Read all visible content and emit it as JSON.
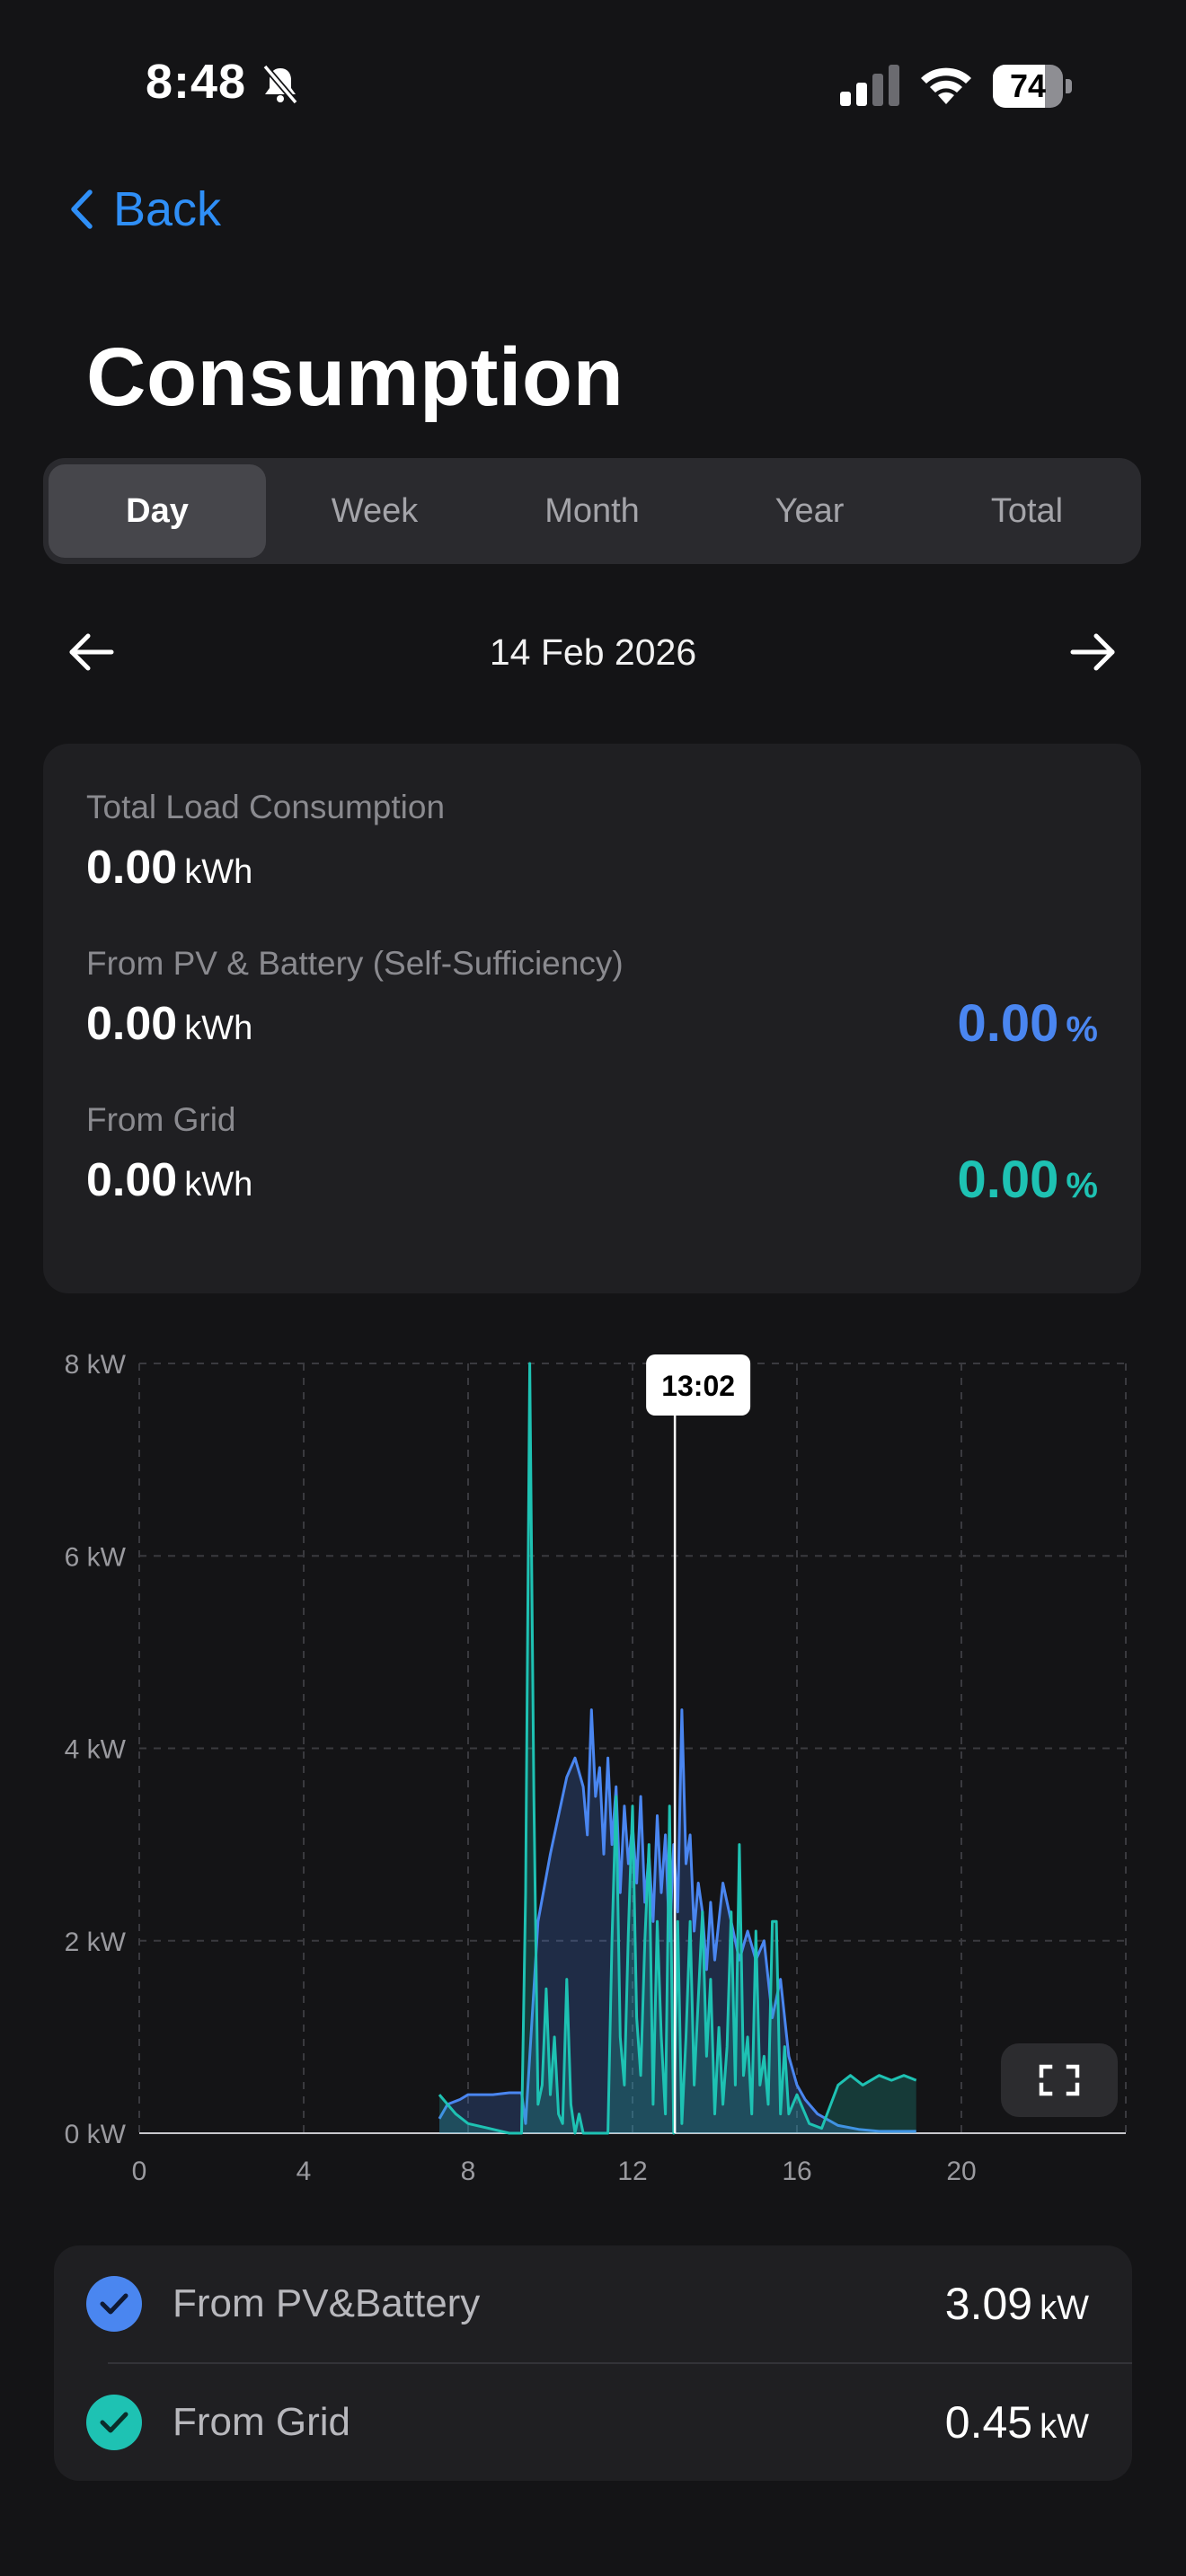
{
  "status_bar": {
    "time": "8:48",
    "battery_percent": 74,
    "battery_label": "74",
    "icons": [
      "bell-slash-icon",
      "cellular-signal-icon",
      "wifi-icon",
      "battery-icon"
    ]
  },
  "nav": {
    "back_label": "Back"
  },
  "page": {
    "title": "Consumption"
  },
  "tabs": [
    {
      "label": "Day",
      "active": true
    },
    {
      "label": "Week",
      "active": false
    },
    {
      "label": "Month",
      "active": false
    },
    {
      "label": "Year",
      "active": false
    },
    {
      "label": "Total",
      "active": false
    }
  ],
  "date_nav": {
    "date": "14 Feb 2026",
    "prev_icon": "arrow-left-icon",
    "next_icon": "arrow-right-icon"
  },
  "summary": {
    "total": {
      "label": "Total Load Consumption",
      "value": "0.00",
      "unit": "kWh"
    },
    "pv": {
      "label": "From PV & Battery (Self-Sufficiency)",
      "value": "0.00",
      "unit": "kWh",
      "percent": "0.00",
      "percent_unit": "%"
    },
    "grid": {
      "label": "From Grid",
      "value": "0.00",
      "unit": "kWh",
      "percent": "0.00",
      "percent_unit": "%"
    }
  },
  "colors": {
    "accent_blue": "#4a86f0",
    "accent_teal": "#1ec2b3",
    "link_blue": "#2f8ff7",
    "background": "#141416",
    "card": "#1f1f22"
  },
  "chart_data": {
    "type": "area",
    "xlim": [
      0,
      24
    ],
    "ylim": [
      0,
      8
    ],
    "x_ticks": [
      "0",
      "4",
      "8",
      "12",
      "16",
      "20"
    ],
    "y_ticks": [
      "0 kW",
      "2 kW",
      "4 kW",
      "6 kW",
      "8 kW"
    ],
    "grid": true,
    "cursor": {
      "x": 13.03,
      "label": "13:02"
    },
    "series": [
      {
        "name": "From PV&Battery",
        "color": "#4a86f0",
        "x": [
          7.3,
          7.5,
          7.8,
          8.0,
          8.3,
          8.6,
          9.0,
          9.3,
          9.4,
          9.5,
          9.7,
          10.0,
          10.2,
          10.4,
          10.6,
          10.8,
          10.9,
          11.0,
          11.1,
          11.2,
          11.3,
          11.4,
          11.5,
          11.6,
          11.7,
          11.8,
          11.9,
          12.0,
          12.1,
          12.2,
          12.3,
          12.4,
          12.5,
          12.6,
          12.7,
          12.8,
          12.9,
          13.0,
          13.1,
          13.2,
          13.3,
          13.4,
          13.5,
          13.6,
          13.7,
          13.8,
          13.9,
          14.0,
          14.2,
          14.4,
          14.6,
          14.8,
          15.0,
          15.2,
          15.4,
          15.6,
          15.8,
          16.0,
          16.2,
          16.5,
          17.0,
          17.5,
          18.0,
          18.5,
          18.9
        ],
        "y": [
          0.15,
          0.3,
          0.35,
          0.4,
          0.4,
          0.4,
          0.42,
          0.42,
          0.1,
          0.8,
          2.2,
          2.9,
          3.3,
          3.7,
          3.9,
          3.6,
          3.1,
          4.4,
          3.5,
          3.8,
          2.9,
          3.9,
          3.0,
          3.6,
          2.5,
          3.4,
          2.8,
          3.2,
          2.6,
          3.5,
          2.4,
          2.9,
          2.2,
          3.3,
          2.5,
          3.1,
          2.0,
          3.0,
          2.3,
          4.4,
          2.8,
          3.1,
          2.1,
          2.6,
          2.3,
          1.7,
          2.4,
          1.8,
          2.6,
          2.2,
          1.8,
          2.1,
          1.8,
          2.0,
          1.2,
          1.6,
          0.8,
          0.5,
          0.35,
          0.2,
          0.08,
          0.04,
          0.02,
          0.02,
          0.02
        ]
      },
      {
        "name": "From Grid",
        "color": "#1ec2b3",
        "x": [
          7.3,
          7.5,
          7.7,
          8.0,
          8.5,
          9.0,
          9.3,
          9.4,
          9.5,
          9.6,
          9.7,
          9.8,
          9.9,
          10.0,
          10.1,
          10.2,
          10.3,
          10.4,
          10.5,
          10.6,
          10.7,
          10.8,
          10.9,
          11.0,
          11.1,
          11.2,
          11.3,
          11.4,
          11.5,
          11.6,
          11.7,
          11.8,
          11.9,
          12.0,
          12.1,
          12.2,
          12.3,
          12.4,
          12.5,
          12.6,
          12.7,
          12.8,
          12.9,
          13.0,
          13.1,
          13.2,
          13.3,
          13.4,
          13.5,
          13.6,
          13.7,
          13.8,
          13.9,
          14.0,
          14.1,
          14.2,
          14.3,
          14.4,
          14.5,
          14.6,
          14.7,
          14.8,
          14.9,
          15.0,
          15.1,
          15.2,
          15.3,
          15.4,
          15.5,
          15.6,
          15.7,
          15.8,
          16.0,
          16.3,
          16.6,
          17.0,
          17.3,
          17.6,
          18.0,
          18.3,
          18.6,
          18.9
        ],
        "y": [
          0.4,
          0.3,
          0.2,
          0.1,
          0.05,
          0.0,
          0.0,
          2.5,
          8.0,
          3.5,
          0.3,
          0.5,
          1.5,
          0.4,
          1.0,
          0.2,
          0.1,
          1.6,
          0.3,
          0.0,
          0.2,
          0.0,
          0.0,
          0.0,
          0.0,
          0.0,
          0.0,
          0.0,
          2.0,
          3.5,
          1.0,
          0.5,
          2.1,
          3.4,
          1.2,
          0.6,
          2.0,
          3.0,
          0.3,
          2.2,
          1.0,
          0.2,
          3.4,
          0.0,
          2.2,
          0.1,
          1.0,
          2.2,
          0.5,
          1.4,
          2.3,
          0.8,
          1.6,
          0.2,
          1.1,
          0.3,
          0.9,
          2.3,
          0.5,
          3.0,
          0.6,
          1.0,
          0.2,
          2.1,
          0.5,
          0.8,
          0.3,
          2.2,
          2.2,
          0.2,
          0.9,
          0.2,
          0.4,
          0.1,
          0.05,
          0.5,
          0.6,
          0.5,
          0.6,
          0.55,
          0.6,
          0.55
        ]
      }
    ]
  },
  "legend": [
    {
      "label": "From PV&Battery",
      "value": "3.09",
      "unit": "kW",
      "color": "#4a86f0",
      "checked": true
    },
    {
      "label": "From Grid",
      "value": "0.45",
      "unit": "kW",
      "color": "#1ec2b3",
      "checked": true
    }
  ],
  "expand_icon": "fullscreen-icon"
}
